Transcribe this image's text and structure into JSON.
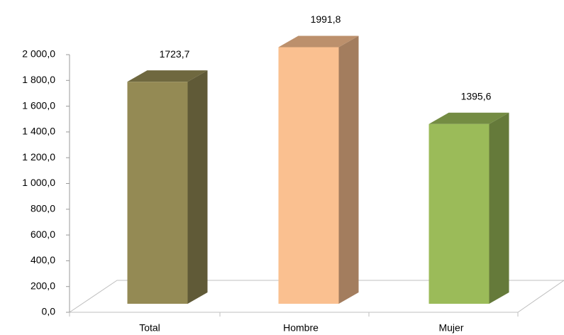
{
  "chart_data": {
    "type": "bar3d",
    "categories": [
      "Total",
      "Hombre",
      "Mujer"
    ],
    "values": [
      1723.7,
      1991.8,
      1395.6
    ],
    "value_labels": [
      "1723,7",
      "1991,8",
      "1395,6"
    ],
    "colors": [
      "#948a54",
      "#fac090",
      "#9bbb59"
    ],
    "ylim": [
      0,
      2000
    ],
    "yticks": [
      {
        "value": 0,
        "label": "0,0"
      },
      {
        "value": 200,
        "label": "200,0"
      },
      {
        "value": 400,
        "label": "400,0"
      },
      {
        "value": 600,
        "label": "600,0"
      },
      {
        "value": 800,
        "label": "800,0"
      },
      {
        "value": 1000,
        "label": "1 000,0"
      },
      {
        "value": 1200,
        "label": "1 200,0"
      },
      {
        "value": 1400,
        "label": "1 400,0"
      },
      {
        "value": 1600,
        "label": "1 600,0"
      },
      {
        "value": 1800,
        "label": "1 800,0"
      },
      {
        "value": 2000,
        "label": "2 000,0"
      }
    ],
    "grid": false
  }
}
